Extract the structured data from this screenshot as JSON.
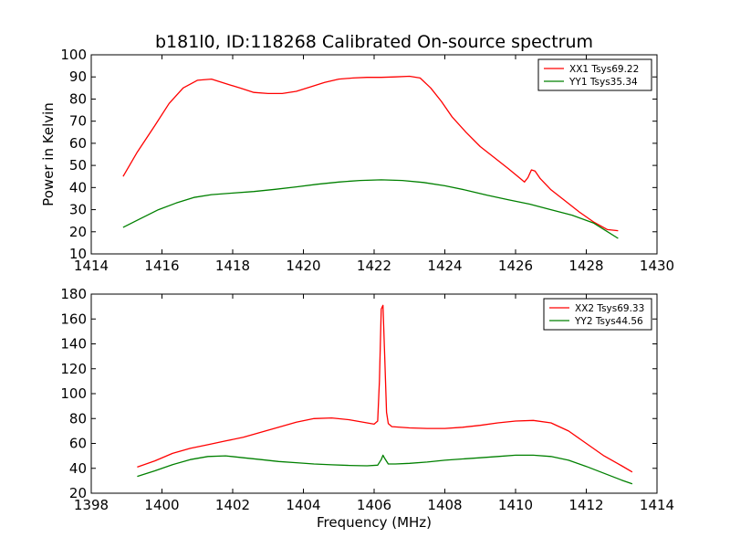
{
  "chart_data": [
    {
      "type": "line",
      "title": "b181l0, ID:118268 Calibrated On-source spectrum",
      "xlabel": "",
      "ylabel": "Power in Kelvin",
      "xlim": [
        1414,
        1430
      ],
      "ylim": [
        10,
        100
      ],
      "xticks": [
        1414,
        1416,
        1418,
        1420,
        1422,
        1424,
        1426,
        1428,
        1430
      ],
      "yticks": [
        10,
        20,
        30,
        40,
        50,
        60,
        70,
        80,
        90,
        100
      ],
      "grid": false,
      "legend_position": "top-right",
      "series": [
        {
          "name": "XX1 Tsys69.22",
          "color": "#ff0000",
          "x": [
            1414.9,
            1415.3,
            1415.8,
            1416.2,
            1416.6,
            1417.0,
            1417.4,
            1417.8,
            1418.2,
            1418.6,
            1419.0,
            1419.4,
            1419.8,
            1420.2,
            1420.6,
            1421.0,
            1421.4,
            1421.8,
            1422.2,
            1422.6,
            1423.0,
            1423.3,
            1423.6,
            1423.9,
            1424.2,
            1424.6,
            1425.0,
            1425.4,
            1425.8,
            1426.1,
            1426.25,
            1426.35,
            1426.45,
            1426.55,
            1426.7,
            1427.0,
            1427.4,
            1427.8,
            1428.2,
            1428.6,
            1428.9
          ],
          "y": [
            45,
            56,
            68,
            78,
            85,
            88.5,
            89,
            87,
            85,
            83,
            82.5,
            82.5,
            83.5,
            85.5,
            87.5,
            89,
            89.5,
            89.8,
            89.8,
            90,
            90.3,
            89.5,
            85,
            79,
            72,
            65,
            58.5,
            53.5,
            48.5,
            44.5,
            42.5,
            44.5,
            48,
            47.5,
            44,
            39,
            34,
            29,
            24.5,
            21,
            20.5
          ]
        },
        {
          "name": "YY1 Tsys35.34",
          "color": "#008000",
          "x": [
            1414.9,
            1415.4,
            1415.9,
            1416.4,
            1416.9,
            1417.4,
            1418.0,
            1418.6,
            1419.2,
            1419.8,
            1420.4,
            1421.0,
            1421.6,
            1422.2,
            1422.8,
            1423.4,
            1424.0,
            1424.6,
            1425.2,
            1425.8,
            1426.4,
            1427.0,
            1427.6,
            1428.2,
            1428.9
          ],
          "y": [
            22,
            26,
            30,
            33,
            35.5,
            36.8,
            37.5,
            38.2,
            39.2,
            40.3,
            41.5,
            42.5,
            43.2,
            43.5,
            43.2,
            42.3,
            40.8,
            38.8,
            36.5,
            34.5,
            32.5,
            30,
            27.5,
            24,
            17
          ]
        }
      ]
    },
    {
      "type": "line",
      "title": "",
      "xlabel": "Frequency (MHz)",
      "ylabel": "",
      "xlim": [
        1398,
        1414
      ],
      "ylim": [
        20,
        180
      ],
      "xticks": [
        1398,
        1400,
        1402,
        1404,
        1406,
        1408,
        1410,
        1412,
        1414
      ],
      "yticks": [
        20,
        40,
        60,
        80,
        100,
        120,
        140,
        160,
        180
      ],
      "grid": false,
      "legend_position": "top-right",
      "series": [
        {
          "name": "XX2 Tsys69.33",
          "color": "#ff0000",
          "x": [
            1399.3,
            1399.8,
            1400.3,
            1400.8,
            1401.3,
            1401.8,
            1402.3,
            1402.8,
            1403.3,
            1403.8,
            1404.3,
            1404.8,
            1405.3,
            1405.8,
            1406.0,
            1406.1,
            1406.15,
            1406.2,
            1406.25,
            1406.3,
            1406.35,
            1406.4,
            1406.5,
            1407.0,
            1407.5,
            1408.0,
            1408.5,
            1409.0,
            1409.5,
            1410.0,
            1410.5,
            1411.0,
            1411.5,
            1412.0,
            1412.5,
            1413.0,
            1413.3
          ],
          "y": [
            41,
            46,
            52,
            56,
            59,
            62,
            65,
            69,
            73,
            77,
            80,
            80.5,
            79,
            76.5,
            75.5,
            78,
            110,
            168,
            171,
            130,
            85,
            76,
            73.5,
            72.5,
            72,
            72,
            73,
            74.5,
            76.5,
            78,
            78.5,
            76.5,
            70,
            60,
            50,
            42,
            37
          ]
        },
        {
          "name": "YY2 Tsys44.56",
          "color": "#008000",
          "x": [
            1399.3,
            1399.8,
            1400.3,
            1400.8,
            1401.3,
            1401.8,
            1402.3,
            1402.8,
            1403.3,
            1403.8,
            1404.3,
            1404.8,
            1405.3,
            1405.8,
            1406.1,
            1406.2,
            1406.25,
            1406.3,
            1406.4,
            1406.6,
            1407.0,
            1407.5,
            1408.0,
            1408.5,
            1409.0,
            1409.5,
            1410.0,
            1410.5,
            1411.0,
            1411.5,
            1412.0,
            1412.5,
            1413.0,
            1413.3
          ],
          "y": [
            33.5,
            38,
            43,
            47,
            49.5,
            50,
            48.5,
            47,
            45.5,
            44.5,
            43.5,
            42.8,
            42.3,
            42,
            42.5,
            47,
            50.5,
            48,
            43.5,
            43.5,
            44,
            45,
            46.5,
            47.5,
            48.5,
            49.5,
            50.5,
            50.5,
            49.5,
            46.5,
            41.5,
            36,
            30.5,
            27.5
          ]
        }
      ]
    }
  ]
}
